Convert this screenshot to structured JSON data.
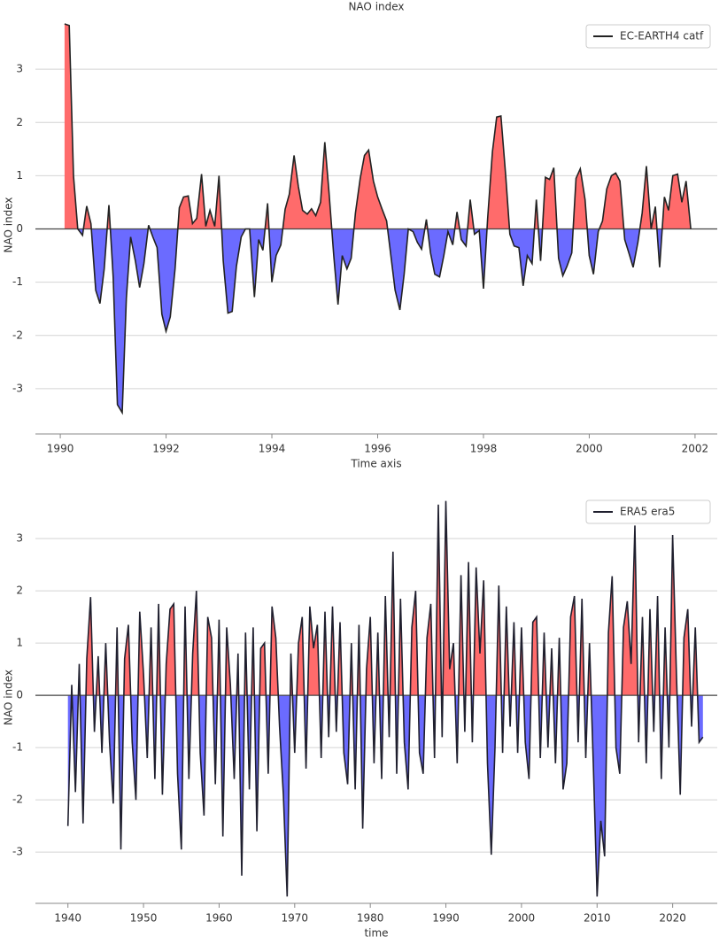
{
  "chart_data": [
    {
      "type": "area",
      "title": "NAO index",
      "xlabel": "Time axis",
      "ylabel": "NAO index",
      "positive_color": "#ff6b6b",
      "negative_color": "#6b6bff",
      "grid": true,
      "legend": "upper right",
      "xlim": [
        1989.53,
        2002.42
      ],
      "ylim": [
        -3.85,
        4.0
      ],
      "xticks": [
        1990,
        1992,
        1994,
        1996,
        1998,
        2000,
        2002
      ],
      "yticks": [
        -3,
        -2,
        -1,
        0,
        1,
        2,
        3
      ],
      "x": [
        1990.08,
        1990.17,
        1990.25,
        1990.33,
        1990.42,
        1990.5,
        1990.58,
        1990.67,
        1990.75,
        1990.83,
        1990.92,
        1991.0,
        1991.08,
        1991.17,
        1991.25,
        1991.33,
        1991.42,
        1991.5,
        1991.58,
        1991.67,
        1991.75,
        1991.83,
        1991.92,
        1992.0,
        1992.08,
        1992.17,
        1992.25,
        1992.33,
        1992.42,
        1992.5,
        1992.58,
        1992.67,
        1992.75,
        1992.83,
        1992.92,
        1993.0,
        1993.08,
        1993.17,
        1993.25,
        1993.33,
        1993.42,
        1993.5,
        1993.58,
        1993.67,
        1993.75,
        1993.83,
        1993.92,
        1994.0,
        1994.08,
        1994.17,
        1994.25,
        1994.33,
        1994.42,
        1994.5,
        1994.58,
        1994.67,
        1994.75,
        1994.83,
        1994.92,
        1995.0,
        1995.08,
        1995.17,
        1995.25,
        1995.33,
        1995.42,
        1995.5,
        1995.58,
        1995.67,
        1995.75,
        1995.83,
        1995.92,
        1996.0,
        1996.08,
        1996.17,
        1996.25,
        1996.33,
        1996.42,
        1996.5,
        1996.58,
        1996.67,
        1996.75,
        1996.83,
        1996.92,
        1997.0,
        1997.08,
        1997.17,
        1997.25,
        1997.33,
        1997.42,
        1997.5,
        1997.58,
        1997.67,
        1997.75,
        1997.83,
        1997.92,
        1998.0,
        1998.08,
        1998.17,
        1998.25,
        1998.33,
        1998.42,
        1998.5,
        1998.58,
        1998.67,
        1998.75,
        1998.83,
        1998.92,
        1999.0,
        1999.08,
        1999.17,
        1999.25,
        1999.33,
        1999.42,
        1999.5,
        1999.58,
        1999.67,
        1999.75,
        1999.83,
        1999.92,
        2000.0,
        2000.08,
        2000.17,
        2000.25,
        2000.33,
        2000.42,
        2000.5,
        2000.58,
        2000.67,
        2000.75,
        2000.83,
        2000.92,
        2001.0,
        2001.08,
        2001.17,
        2001.25,
        2001.33,
        2001.42,
        2001.5,
        2001.58,
        2001.67,
        2001.75,
        2001.83,
        2001.92
      ],
      "series": [
        {
          "name": "EC-EARTH4 catf",
          "color": "#222222",
          "values": [
            3.85,
            3.82,
            1.0,
            0.0,
            -0.12,
            0.43,
            0.1,
            -1.15,
            -1.4,
            -0.75,
            0.45,
            -0.9,
            -3.3,
            -3.45,
            -1.3,
            -0.15,
            -0.6,
            -1.1,
            -0.65,
            0.07,
            -0.15,
            -0.35,
            -1.6,
            -1.92,
            -1.65,
            -0.75,
            0.4,
            0.6,
            0.62,
            0.1,
            0.2,
            1.03,
            0.05,
            0.35,
            0.05,
            1.0,
            -0.6,
            -1.58,
            -1.55,
            -0.7,
            -0.15,
            0.0,
            0.0,
            -1.28,
            -0.2,
            -0.4,
            0.48,
            -1.0,
            -0.5,
            -0.3,
            0.37,
            0.65,
            1.38,
            0.8,
            0.35,
            0.28,
            0.38,
            0.25,
            0.5,
            1.63,
            0.7,
            -0.5,
            -1.42,
            -0.5,
            -0.75,
            -0.55,
            0.3,
            0.95,
            1.38,
            1.48,
            0.9,
            0.6,
            0.38,
            0.15,
            -0.5,
            -1.15,
            -1.52,
            -0.85,
            0.0,
            -0.05,
            -0.25,
            -0.38,
            0.18,
            -0.45,
            -0.85,
            -0.9,
            -0.5,
            -0.05,
            -0.3,
            0.32,
            -0.2,
            -0.32,
            0.55,
            -0.1,
            -0.03,
            -1.12,
            0.2,
            1.45,
            2.1,
            2.12,
            1.0,
            -0.1,
            -0.32,
            -0.35,
            -1.07,
            -0.5,
            -0.65,
            0.55,
            -0.6,
            0.97,
            0.93,
            1.15,
            -0.55,
            -0.88,
            -0.7,
            -0.45,
            0.95,
            1.13,
            0.55,
            -0.5,
            -0.85,
            -0.05,
            0.15,
            0.75,
            1.0,
            1.05,
            0.9,
            -0.2,
            -0.45,
            -0.72,
            -0.25,
            0.3,
            1.18,
            0.0,
            0.42,
            -0.72,
            0.6,
            0.35,
            1.0,
            1.03,
            0.5,
            0.9,
            0.0
          ]
        }
      ]
    },
    {
      "type": "area",
      "xlabel": "time",
      "ylabel": "NAO index",
      "positive_color": "#ff6b6b",
      "negative_color": "#6b6bff",
      "grid": true,
      "legend": "upper right",
      "xlim": [
        1935.7,
        2025.9
      ],
      "ylim": [
        -3.98,
        3.9
      ],
      "xticks": [
        1940,
        1950,
        1960,
        1970,
        1980,
        1990,
        2000,
        2010,
        2020
      ],
      "yticks": [
        -3,
        -2,
        -1,
        0,
        1,
        2,
        3
      ],
      "x": [
        1940,
        1940.5,
        1941,
        1941.5,
        1942,
        1942.5,
        1943,
        1943.5,
        1944,
        1944.5,
        1945,
        1945.5,
        1946,
        1946.5,
        1947,
        1947.5,
        1948,
        1948.5,
        1949,
        1949.5,
        1950,
        1950.5,
        1951,
        1951.5,
        1952,
        1952.5,
        1953,
        1953.5,
        1954,
        1954.5,
        1955,
        1955.5,
        1956,
        1956.5,
        1957,
        1957.5,
        1958,
        1958.5,
        1959,
        1959.5,
        1960,
        1960.5,
        1961,
        1961.5,
        1962,
        1962.5,
        1963,
        1963.5,
        1964,
        1964.5,
        1965,
        1965.5,
        1966,
        1966.5,
        1967,
        1967.5,
        1968,
        1968.5,
        1969,
        1969.5,
        1970,
        1970.5,
        1971,
        1971.5,
        1972,
        1972.5,
        1973,
        1973.5,
        1974,
        1974.5,
        1975,
        1975.5,
        1976,
        1976.5,
        1977,
        1977.5,
        1978,
        1978.5,
        1979,
        1979.5,
        1980,
        1980.5,
        1981,
        1981.5,
        1982,
        1982.5,
        1983,
        1983.5,
        1984,
        1984.5,
        1985,
        1985.5,
        1986,
        1986.5,
        1987,
        1987.5,
        1988,
        1988.5,
        1989,
        1989.5,
        1990,
        1990.5,
        1991,
        1991.5,
        1992,
        1992.5,
        1993,
        1993.5,
        1994,
        1994.5,
        1995,
        1995.5,
        1996,
        1996.5,
        1997,
        1997.5,
        1998,
        1998.5,
        1999,
        1999.5,
        2000,
        2000.5,
        2001,
        2001.5,
        2002,
        2002.5,
        2003,
        2003.5,
        2004,
        2004.5,
        2005,
        2005.5,
        2006,
        2006.5,
        2007,
        2007.5,
        2008,
        2008.5,
        2009,
        2009.5,
        2010,
        2010.5,
        2011,
        2011.5,
        2012,
        2012.5,
        2013,
        2013.5,
        2014,
        2014.5,
        2015,
        2015.5,
        2016,
        2016.5,
        2017,
        2017.5,
        2018,
        2018.5,
        2019,
        2019.5,
        2020,
        2020.5,
        2021,
        2021.5,
        2022,
        2022.5,
        2023,
        2023.5,
        2024
      ],
      "series": [
        {
          "name": "ERA5 era5",
          "color": "#1f1f2e",
          "values": [
            -2.5,
            0.2,
            -1.85,
            0.6,
            -2.45,
            0.7,
            1.88,
            -0.7,
            0.75,
            -1.1,
            1.0,
            -0.9,
            -2.07,
            1.3,
            -2.95,
            0.7,
            1.35,
            -0.9,
            -2.0,
            1.6,
            0.4,
            -1.2,
            1.3,
            -1.6,
            1.75,
            -1.9,
            0.6,
            1.65,
            1.75,
            -1.5,
            -2.95,
            1.7,
            -1.6,
            0.8,
            2.0,
            -1.1,
            -2.3,
            1.5,
            1.1,
            -1.7,
            1.45,
            -2.7,
            1.3,
            0.2,
            -1.6,
            0.8,
            -3.45,
            1.2,
            -1.8,
            1.3,
            -2.6,
            0.9,
            1.0,
            -1.5,
            1.7,
            1.1,
            -0.6,
            -1.9,
            -3.85,
            0.8,
            -1.1,
            1.0,
            1.5,
            -1.4,
            1.7,
            0.9,
            1.35,
            -1.2,
            1.6,
            -0.8,
            1.7,
            -0.7,
            1.4,
            -1.1,
            -1.7,
            1.0,
            -1.8,
            1.35,
            -2.55,
            0.5,
            1.5,
            -1.3,
            1.2,
            -1.6,
            1.9,
            -0.8,
            2.75,
            -1.5,
            1.85,
            -0.9,
            -1.8,
            1.3,
            2.0,
            -1.1,
            -1.5,
            1.1,
            1.75,
            -1.2,
            3.65,
            -0.8,
            3.72,
            0.5,
            1.0,
            -1.3,
            2.3,
            -0.7,
            2.55,
            -0.9,
            2.45,
            0.8,
            2.2,
            -1.3,
            -3.05,
            -1.0,
            2.1,
            -1.1,
            1.7,
            -0.6,
            1.4,
            -1.1,
            1.3,
            -0.9,
            -1.6,
            1.4,
            1.5,
            -1.2,
            1.2,
            -1.0,
            0.9,
            -1.3,
            1.1,
            -1.8,
            -1.3,
            1.5,
            1.9,
            -0.9,
            1.85,
            -1.2,
            1.0,
            -1.3,
            -3.85,
            -2.4,
            -3.08,
            1.2,
            2.28,
            -1.0,
            -1.5,
            1.3,
            1.8,
            0.6,
            3.25,
            -0.9,
            1.5,
            -1.3,
            1.65,
            -0.7,
            1.9,
            -1.6,
            1.3,
            -1.0,
            3.07,
            0.4,
            -1.9,
            1.1,
            1.65,
            -0.6,
            1.3,
            -0.9,
            -0.8
          ]
        }
      ]
    }
  ]
}
